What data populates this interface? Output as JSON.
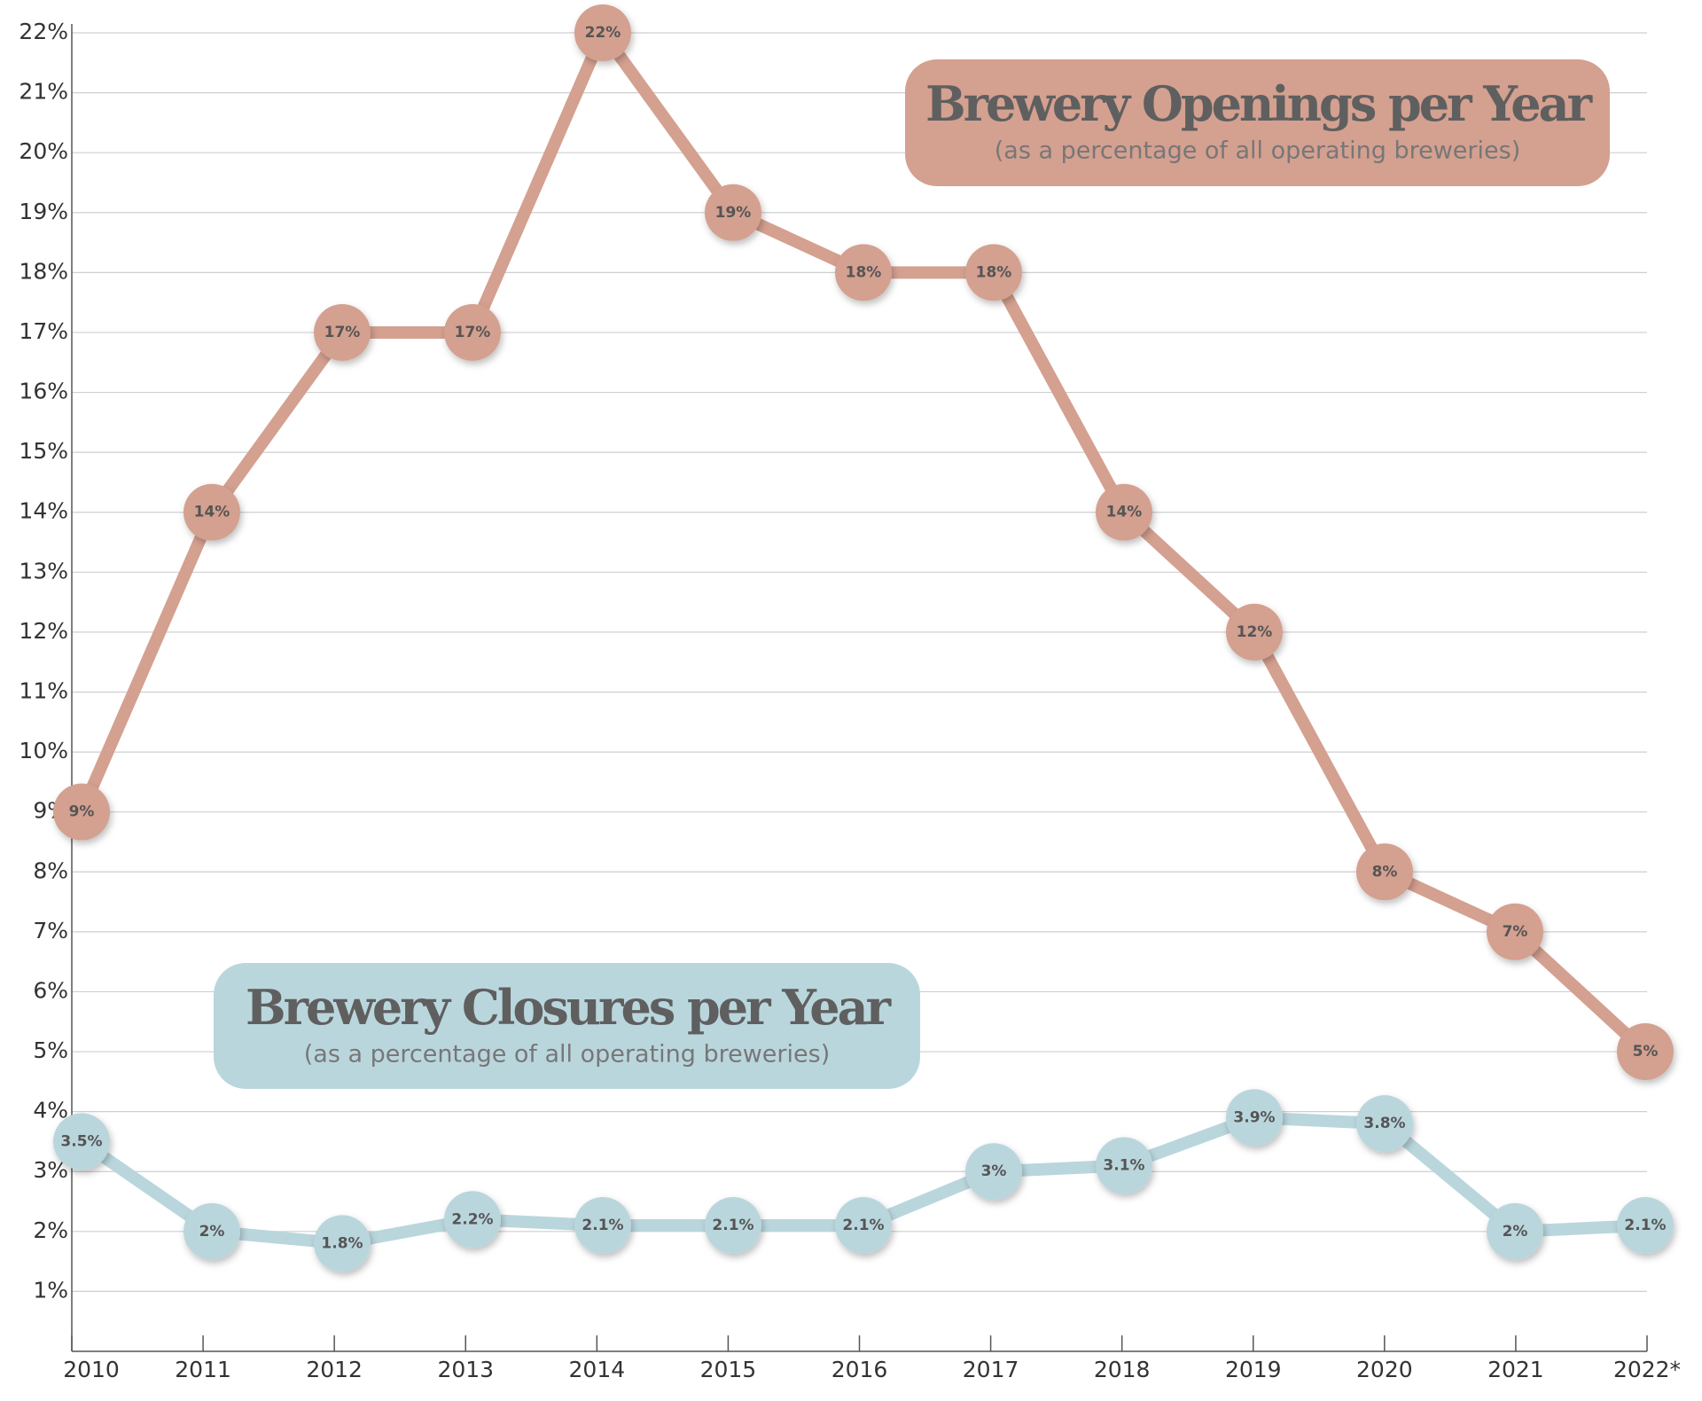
{
  "chart_data": {
    "type": "line",
    "categories": [
      "2010",
      "2011",
      "2012",
      "2013",
      "2014",
      "2015",
      "2016",
      "2017",
      "2018",
      "2019",
      "2020",
      "2021",
      "2022*"
    ],
    "series": [
      {
        "name": "Brewery Openings per Year",
        "note": "(as a percentage of all operating breweries)",
        "color": "#d4a090",
        "values": [
          9,
          14,
          17,
          17,
          22,
          19,
          18,
          18,
          14,
          12,
          8,
          7,
          5
        ],
        "value_labels": [
          "9%",
          "14%",
          "17%",
          "17%",
          "22%",
          "19%",
          "18%",
          "18%",
          "14%",
          "12%",
          "8%",
          "7%",
          "5%"
        ]
      },
      {
        "name": "Brewery Closures per Year",
        "note": "(as a percentage of all operating breweries)",
        "color": "#bad6dd",
        "values": [
          3.5,
          2,
          1.8,
          2.2,
          2.1,
          2.1,
          2.1,
          3,
          3.1,
          3.9,
          3.8,
          2,
          2.1
        ],
        "value_labels": [
          "3.5%",
          "2%",
          "1.8%",
          "2.2%",
          "2.1%",
          "2.1%",
          "2.1%",
          "3%",
          "3.1%",
          "3.9%",
          "3.8%",
          "2%",
          "2.1%"
        ]
      }
    ],
    "ylim": [
      0,
      22
    ],
    "yticks": [
      {
        "value": 1,
        "label": "1%"
      },
      {
        "value": 2,
        "label": "2%"
      },
      {
        "value": 3,
        "label": "3%"
      },
      {
        "value": 4,
        "label": "4%"
      },
      {
        "value": 5,
        "label": "5%"
      },
      {
        "value": 6,
        "label": "6%"
      },
      {
        "value": 7,
        "label": "7%"
      },
      {
        "value": 8,
        "label": "8%"
      },
      {
        "value": 9,
        "label": "9%"
      },
      {
        "value": 10,
        "label": "10%"
      },
      {
        "value": 11,
        "label": "11%"
      },
      {
        "value": 12,
        "label": "12%"
      },
      {
        "value": 13,
        "label": "13%"
      },
      {
        "value": 14,
        "label": "14%"
      },
      {
        "value": 15,
        "label": "15%"
      },
      {
        "value": 16,
        "label": "16%"
      },
      {
        "value": 17,
        "label": "17%"
      },
      {
        "value": 18,
        "label": "18%"
      },
      {
        "value": 19,
        "label": "19%"
      },
      {
        "value": 20,
        "label": "20%"
      },
      {
        "value": 21,
        "label": "21%"
      },
      {
        "value": 22,
        "label": "22%"
      }
    ],
    "grid": true
  }
}
